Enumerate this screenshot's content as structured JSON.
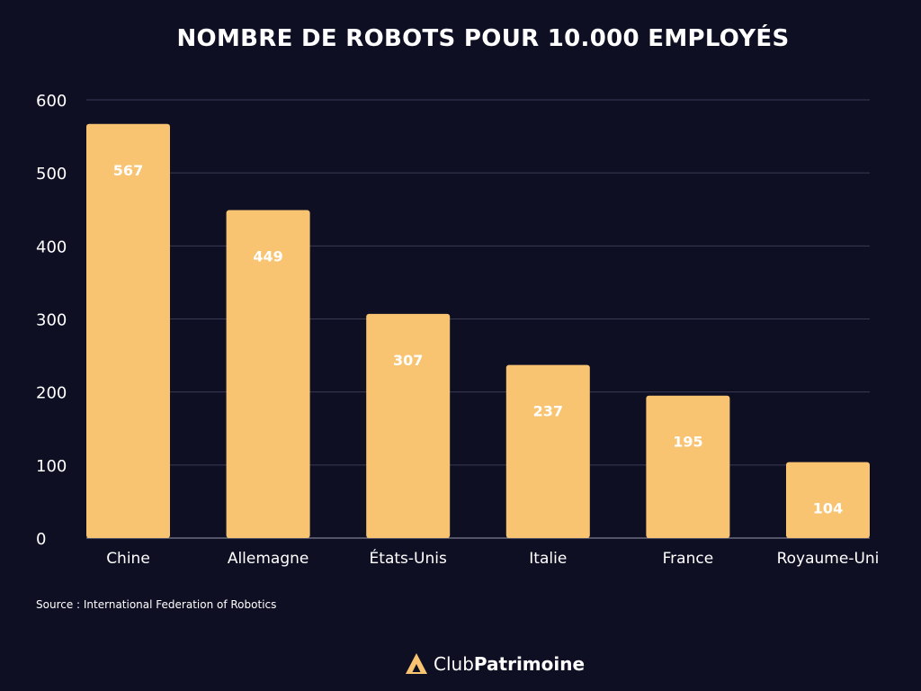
{
  "chart_data": {
    "type": "bar",
    "title": "NOMBRE DE ROBOTS POUR 10.000 EMPLOYÉS",
    "categories": [
      "Chine",
      "Allemagne",
      "États-Unis",
      "Italie",
      "France",
      "Royaume-Uni"
    ],
    "values": [
      567,
      449,
      307,
      237,
      195,
      104
    ],
    "data_labels": [
      "567",
      "449",
      "307",
      "237",
      "195",
      "104"
    ],
    "ylim": [
      0,
      600
    ],
    "yticks": [
      0,
      100,
      200,
      300,
      400,
      500,
      600
    ],
    "ytick_labels": [
      "0",
      "100",
      "200",
      "300",
      "400",
      "500",
      "600"
    ],
    "grid": true,
    "bar_color": "#f8c471",
    "background_color": "#0f0f24"
  },
  "source": "Source : International Federation of Robotics",
  "brand": {
    "name_light": "Club",
    "name_bold": "Patrimoine",
    "logo_icon": "triangle-logo-icon",
    "logo_color": "#f8c471"
  }
}
